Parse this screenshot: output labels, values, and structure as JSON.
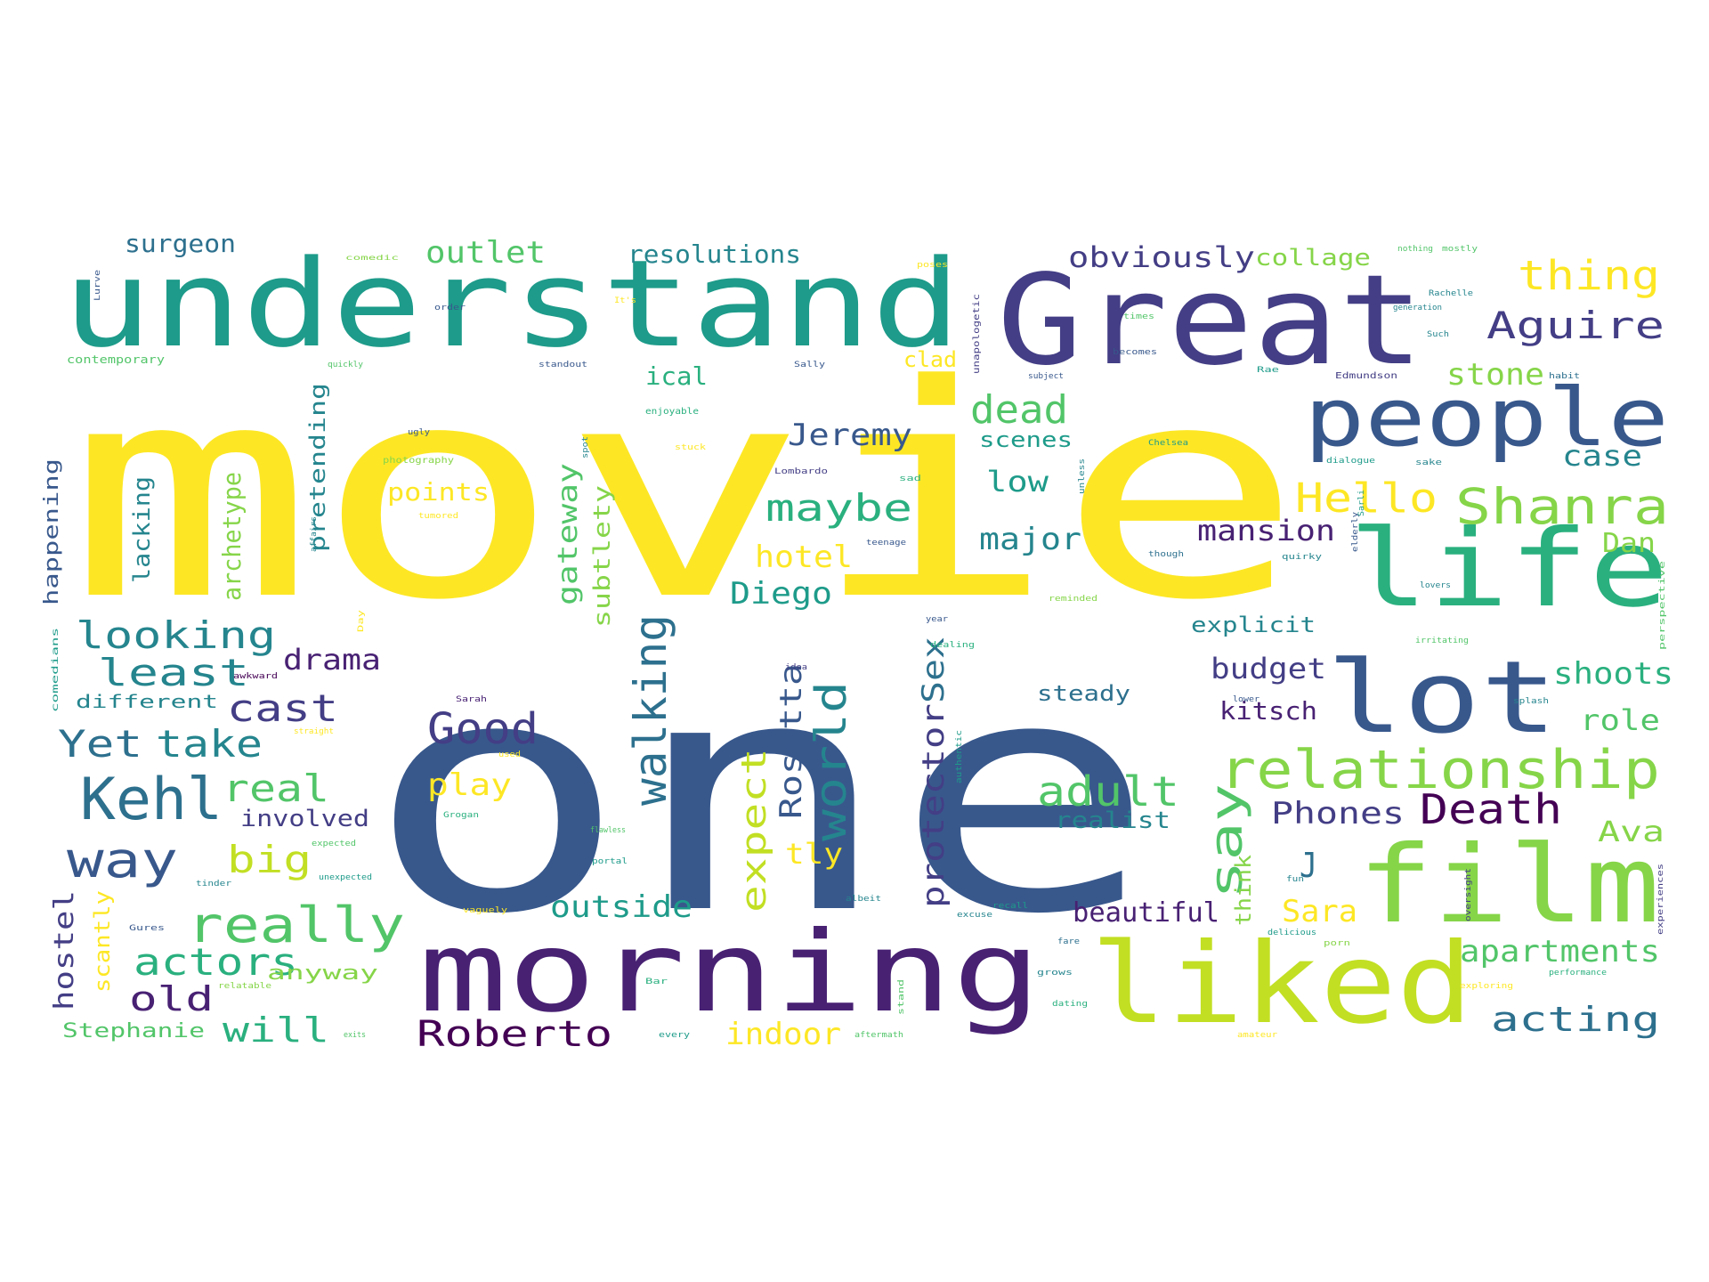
{
  "wordcloud": {
    "palette": {
      "yellow": "#fde725",
      "lime": "#c2df23",
      "green_light": "#86d549",
      "green": "#52c569",
      "teal_green": "#2ab07f",
      "teal": "#1e9b8a",
      "teal_blue": "#25858e",
      "blue_teal": "#2d708e",
      "blue": "#38588c",
      "indigo": "#433e85",
      "purple": "#482173",
      "dark_purple": "#440154"
    },
    "words": [
      {
        "text": "movie",
        "color": "yellow"
      },
      {
        "text": "one",
        "color": "blue"
      },
      {
        "text": "understand",
        "color": "teal"
      },
      {
        "text": "Great",
        "color": "indigo"
      },
      {
        "text": "morning",
        "color": "purple"
      },
      {
        "text": "liked",
        "color": "lime"
      },
      {
        "text": "film",
        "color": "green_light"
      },
      {
        "text": "life",
        "color": "teal_green"
      },
      {
        "text": "lot",
        "color": "blue"
      },
      {
        "text": "people",
        "color": "blue"
      },
      {
        "text": "relationship",
        "color": "green_light"
      },
      {
        "text": "Shanra",
        "color": "green_light"
      },
      {
        "text": "Kehl",
        "color": "blue_teal"
      },
      {
        "text": "way",
        "color": "blue"
      },
      {
        "text": "really",
        "color": "green"
      },
      {
        "text": "Hello",
        "color": "yellow"
      },
      {
        "text": "thing",
        "color": "yellow"
      },
      {
        "text": "Aguire",
        "color": "indigo"
      },
      {
        "text": "walking",
        "color": "blue_teal"
      },
      {
        "text": "world",
        "color": "teal_blue"
      },
      {
        "text": "say",
        "color": "green"
      },
      {
        "text": "Good",
        "color": "indigo"
      },
      {
        "text": "Death",
        "color": "dark_purple"
      },
      {
        "text": "adult",
        "color": "green"
      },
      {
        "text": "outlet",
        "color": "green"
      },
      {
        "text": "dead",
        "color": "green"
      },
      {
        "text": "maybe",
        "color": "teal_green"
      },
      {
        "text": "looking",
        "color": "teal_blue"
      },
      {
        "text": "least",
        "color": "teal_blue"
      },
      {
        "text": "cast",
        "color": "indigo"
      },
      {
        "text": "Yet",
        "color": "blue_teal"
      },
      {
        "text": "take",
        "color": "teal_blue"
      },
      {
        "text": "real",
        "color": "green"
      },
      {
        "text": "big",
        "color": "lime"
      },
      {
        "text": "actors",
        "color": "teal_green"
      },
      {
        "text": "old",
        "color": "purple"
      },
      {
        "text": "will",
        "color": "teal_green"
      },
      {
        "text": "Roberto",
        "color": "dark_purple"
      },
      {
        "text": "expect",
        "color": "lime"
      },
      {
        "text": "Rosetta",
        "color": "blue"
      },
      {
        "text": "protector",
        "color": "indigo"
      },
      {
        "text": "Sex",
        "color": "blue_teal"
      },
      {
        "text": "Jeremy",
        "color": "blue"
      },
      {
        "text": "obviously",
        "color": "indigo"
      },
      {
        "text": "collage",
        "color": "green_light"
      },
      {
        "text": "resolutions",
        "color": "teal_blue"
      },
      {
        "text": "surgeon",
        "color": "blue_teal"
      },
      {
        "text": "stone",
        "color": "green_light"
      },
      {
        "text": "case",
        "color": "teal_blue"
      },
      {
        "text": "Phones",
        "color": "indigo"
      },
      {
        "text": "mansion",
        "color": "purple"
      },
      {
        "text": "budget",
        "color": "indigo"
      },
      {
        "text": "kitsch",
        "color": "purple"
      },
      {
        "text": "shoots",
        "color": "teal_green"
      },
      {
        "text": "role",
        "color": "green"
      },
      {
        "text": "Ava",
        "color": "green_light"
      },
      {
        "text": "Dan",
        "color": "green_light"
      },
      {
        "text": "J",
        "color": "blue_teal"
      },
      {
        "text": "Sara",
        "color": "yellow"
      },
      {
        "text": "apartments",
        "color": "green"
      },
      {
        "text": "acting",
        "color": "blue_teal"
      },
      {
        "text": "beautiful",
        "color": "purple"
      },
      {
        "text": "outside",
        "color": "teal"
      },
      {
        "text": "indoor",
        "color": "yellow"
      },
      {
        "text": "hotel",
        "color": "yellow"
      },
      {
        "text": "Diego",
        "color": "teal"
      },
      {
        "text": "major",
        "color": "teal_blue"
      },
      {
        "text": "low",
        "color": "teal"
      },
      {
        "text": "scenes",
        "color": "teal"
      },
      {
        "text": "ical",
        "color": "teal_green"
      },
      {
        "text": "clad",
        "color": "yellow"
      },
      {
        "text": "points",
        "color": "yellow"
      },
      {
        "text": "drama",
        "color": "purple"
      },
      {
        "text": "play",
        "color": "yellow"
      },
      {
        "text": "involved",
        "color": "indigo"
      },
      {
        "text": "explicit",
        "color": "teal_blue"
      },
      {
        "text": "steady",
        "color": "blue_teal"
      },
      {
        "text": "realist",
        "color": "teal_blue"
      },
      {
        "text": "tly",
        "color": "yellow"
      },
      {
        "text": "gateway",
        "color": "green"
      },
      {
        "text": "subtlety",
        "color": "green_light"
      },
      {
        "text": "pretending",
        "color": "teal_blue"
      },
      {
        "text": "archetype",
        "color": "green_light"
      },
      {
        "text": "lacking",
        "color": "teal_blue"
      },
      {
        "text": "happening",
        "color": "blue"
      },
      {
        "text": "hostel",
        "color": "indigo"
      },
      {
        "text": "scantly",
        "color": "yellow"
      },
      {
        "text": "anyway",
        "color": "green_light"
      },
      {
        "text": "Stephanie",
        "color": "green"
      },
      {
        "text": "different",
        "color": "teal_blue"
      },
      {
        "text": "think",
        "color": "green_light"
      },
      {
        "text": "mostly",
        "color": "green"
      },
      {
        "text": "nothing",
        "color": "green"
      },
      {
        "text": "contemporary",
        "color": "green"
      },
      {
        "text": "Edmundson",
        "color": "indigo"
      },
      {
        "text": "standout",
        "color": "blue"
      },
      {
        "text": "photography",
        "color": "green_light"
      },
      {
        "text": "enjoyable",
        "color": "teal_green"
      },
      {
        "text": "Chelsea",
        "color": "teal"
      },
      {
        "text": "dialogue",
        "color": "teal"
      },
      {
        "text": "quirky",
        "color": "teal_blue"
      },
      {
        "text": "unapologetic",
        "color": "indigo"
      },
      {
        "text": "performance",
        "color": "teal_green"
      },
      {
        "text": "Rachelle",
        "color": "teal_blue"
      },
      {
        "text": "generation",
        "color": "teal_blue"
      },
      {
        "text": "becomes",
        "color": "blue"
      },
      {
        "text": "Lombardo",
        "color": "indigo"
      },
      {
        "text": "Sarah",
        "color": "purple"
      },
      {
        "text": "irritating",
        "color": "green"
      },
      {
        "text": "delicious",
        "color": "teal"
      },
      {
        "text": "relatable",
        "color": "green_light"
      },
      {
        "text": "vaguely",
        "color": "yellow"
      },
      {
        "text": "amateur",
        "color": "yellow"
      },
      {
        "text": "aftermath",
        "color": "green"
      },
      {
        "text": "exploring",
        "color": "yellow"
      },
      {
        "text": "Grogan",
        "color": "teal_green"
      },
      {
        "text": "recall",
        "color": "teal"
      },
      {
        "text": "flawless",
        "color": "green"
      },
      {
        "text": "portal",
        "color": "teal"
      },
      {
        "text": "awkward",
        "color": "dark_purple"
      },
      {
        "text": "unexpected",
        "color": "teal"
      },
      {
        "text": "expected",
        "color": "green"
      },
      {
        "text": "teenage",
        "color": "blue"
      },
      {
        "text": "dealing",
        "color": "teal_green"
      },
      {
        "text": "reminded",
        "color": "green_light"
      },
      {
        "text": "albeit",
        "color": "teal_blue"
      },
      {
        "text": "straight",
        "color": "yellow"
      },
      {
        "text": "comedians",
        "color": "teal"
      },
      {
        "text": "excuse",
        "color": "teal_blue"
      },
      {
        "text": "authentic",
        "color": "teal"
      },
      {
        "text": "perspective",
        "color": "green"
      },
      {
        "text": "splash",
        "color": "teal_blue"
      },
      {
        "text": "oversight",
        "color": "indigo"
      },
      {
        "text": "experiences",
        "color": "indigo"
      },
      {
        "text": "every",
        "color": "teal"
      },
      {
        "text": "dating",
        "color": "teal_green"
      },
      {
        "text": "grows",
        "color": "teal_blue"
      },
      {
        "text": "Gures",
        "color": "blue"
      },
      {
        "text": "tinder",
        "color": "teal_blue"
      },
      {
        "text": "quickly",
        "color": "green"
      },
      {
        "text": "Sally",
        "color": "blue"
      },
      {
        "text": "sad",
        "color": "teal_green"
      },
      {
        "text": "ugly",
        "color": "blue"
      },
      {
        "text": "spot",
        "color": "teal_blue"
      },
      {
        "text": "order",
        "color": "blue"
      },
      {
        "text": "poses",
        "color": "yellow"
      },
      {
        "text": "comedic",
        "color": "green_light"
      },
      {
        "text": "stuck",
        "color": "yellow"
      },
      {
        "text": "subject",
        "color": "blue"
      },
      {
        "text": "times",
        "color": "green"
      },
      {
        "text": "habit",
        "color": "blue_teal"
      },
      {
        "text": "sake",
        "color": "teal_blue"
      },
      {
        "text": "elderly",
        "color": "blue"
      },
      {
        "text": "tumored",
        "color": "yellow"
      },
      {
        "text": "though",
        "color": "blue_teal"
      },
      {
        "text": "affairs",
        "color": "teal_blue"
      },
      {
        "text": "idea",
        "color": "indigo"
      },
      {
        "text": "year",
        "color": "blue"
      },
      {
        "text": "used",
        "color": "yellow"
      },
      {
        "text": "porn",
        "color": "green_light"
      },
      {
        "text": "fun",
        "color": "teal_blue"
      },
      {
        "text": "lovers",
        "color": "teal_blue"
      },
      {
        "text": "fare",
        "color": "blue_teal"
      },
      {
        "text": "stand",
        "color": "green"
      },
      {
        "text": "Bar",
        "color": "teal_green"
      },
      {
        "text": "Rae",
        "color": "teal"
      },
      {
        "text": "Such",
        "color": "teal_blue"
      },
      {
        "text": "Sarli",
        "color": "teal"
      },
      {
        "text": "It's",
        "color": "yellow"
      },
      {
        "text": "Day",
        "color": "yellow"
      },
      {
        "text": "unless",
        "color": "teal_blue"
      },
      {
        "text": "lower",
        "color": "blue"
      },
      {
        "text": "Lurve",
        "color": "blue"
      },
      {
        "text": "exits",
        "color": "green"
      }
    ]
  }
}
